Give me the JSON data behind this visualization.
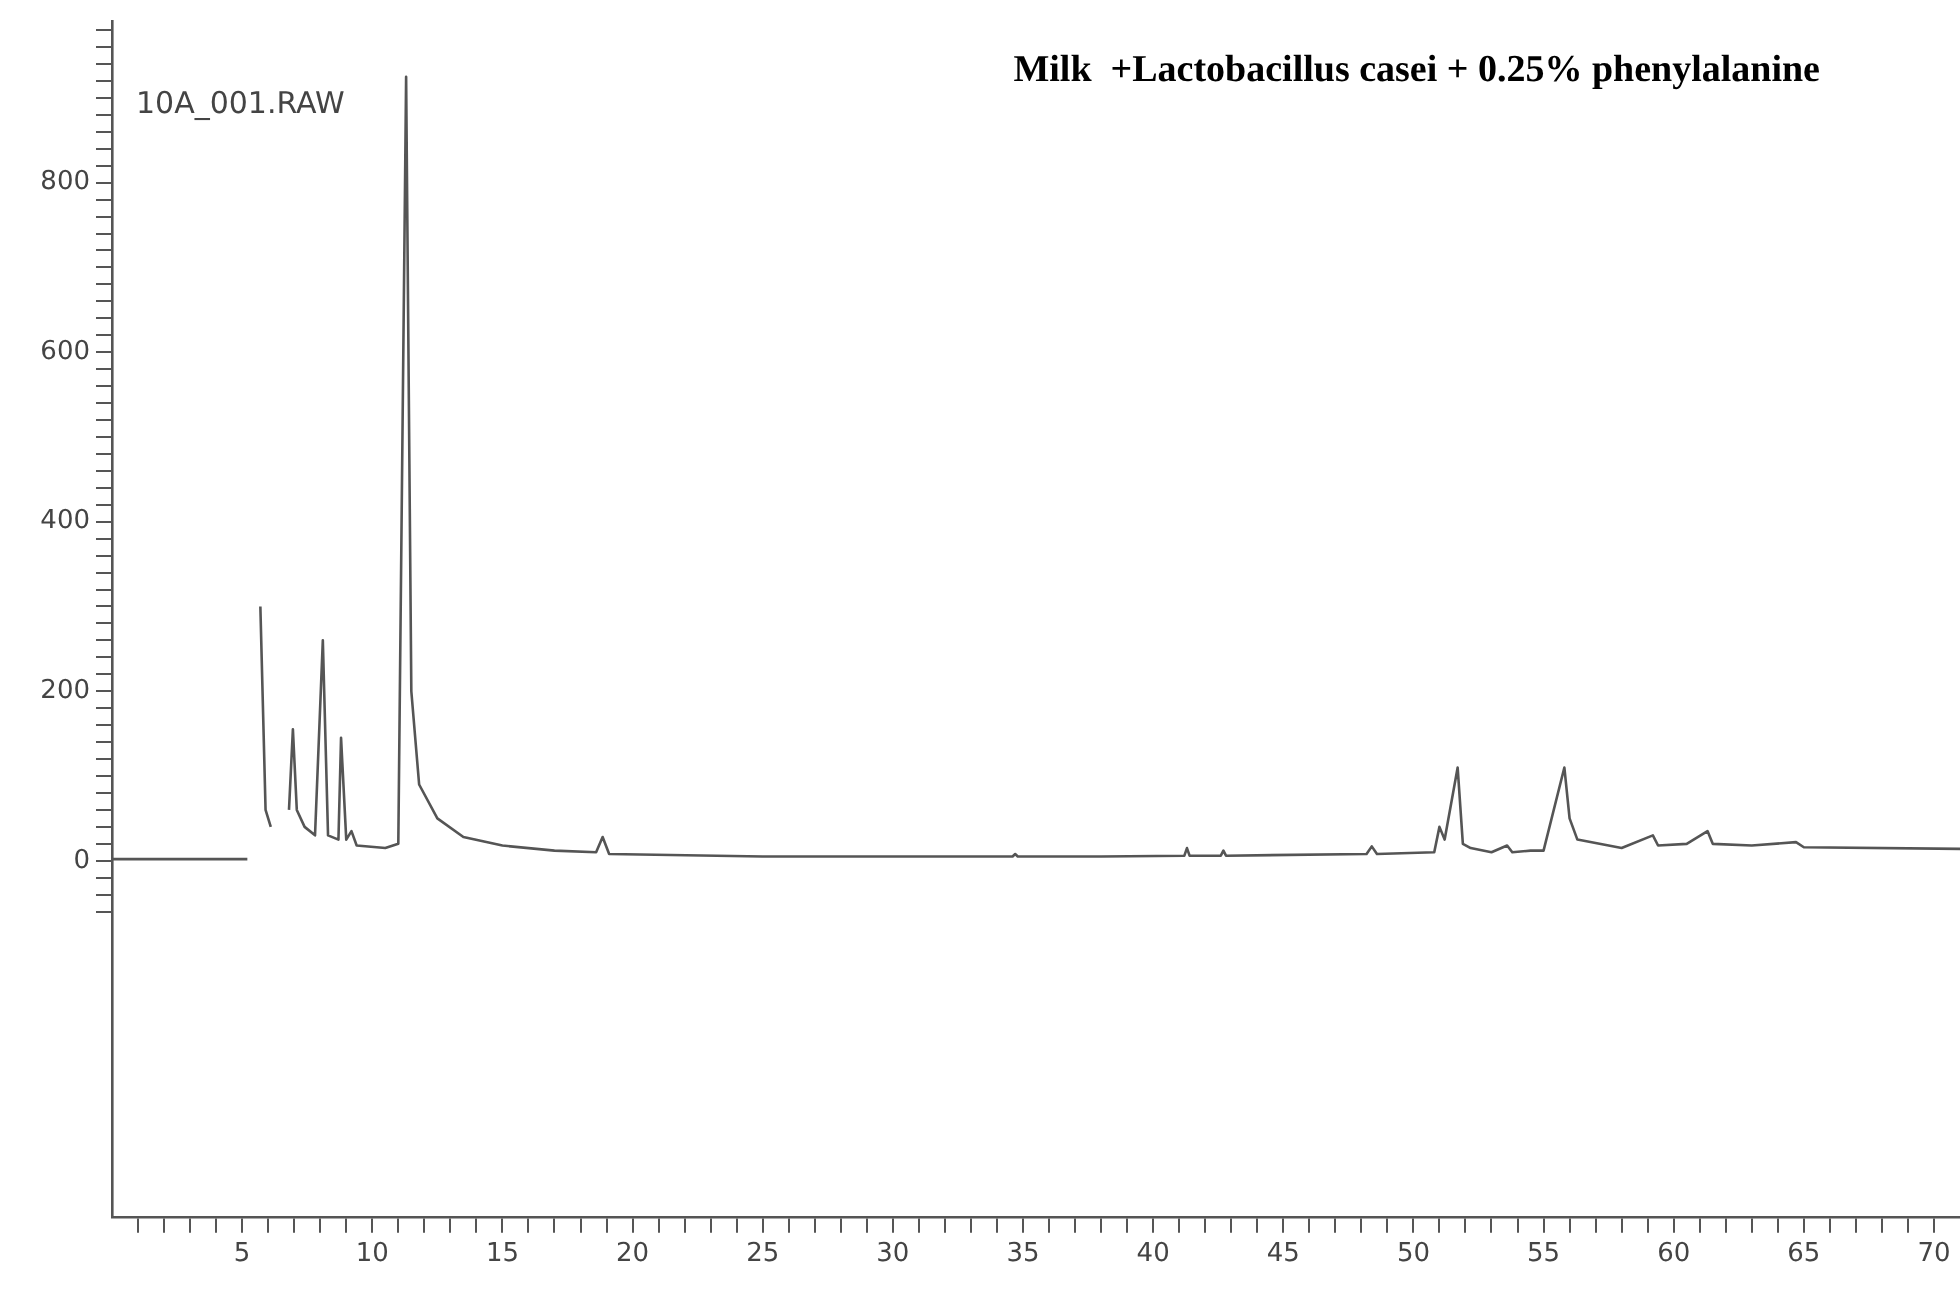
{
  "chart_data": {
    "type": "line",
    "title": "Milk  +Lactobacillus casei + 0.25% phenylalanine",
    "annotations": [
      "10A_001.RAW"
    ],
    "xlim": [
      0,
      71
    ],
    "ylim": [
      -420,
      990
    ],
    "xticks": [
      {
        "value": 1,
        "label": null
      },
      {
        "value": 2,
        "label": null
      },
      {
        "value": 3,
        "label": null
      },
      {
        "value": 4,
        "label": null
      },
      5,
      {
        "value": 6,
        "label": null
      },
      {
        "value": 7,
        "label": null
      },
      {
        "value": 8,
        "label": null
      },
      {
        "value": 9,
        "label": null
      },
      10,
      {
        "value": 11,
        "label": null
      },
      {
        "value": 12,
        "label": null
      },
      {
        "value": 13,
        "label": null
      },
      {
        "value": 14,
        "label": null
      },
      15,
      {
        "value": 16,
        "label": null
      },
      {
        "value": 17,
        "label": null
      },
      {
        "value": 18,
        "label": null
      },
      {
        "value": 19,
        "label": null
      },
      20,
      {
        "value": 21,
        "label": null
      },
      {
        "value": 22,
        "label": null
      },
      {
        "value": 23,
        "label": null
      },
      {
        "value": 24,
        "label": null
      },
      25,
      {
        "value": 26,
        "label": null
      },
      {
        "value": 27,
        "label": null
      },
      {
        "value": 28,
        "label": null
      },
      {
        "value": 29,
        "label": null
      },
      30,
      {
        "value": 31,
        "label": null
      },
      {
        "value": 32,
        "label": null
      },
      {
        "value": 33,
        "label": null
      },
      {
        "value": 34,
        "label": null
      },
      35,
      {
        "value": 36,
        "label": null
      },
      {
        "value": 37,
        "label": null
      },
      {
        "value": 38,
        "label": null
      },
      {
        "value": 39,
        "label": null
      },
      40,
      {
        "value": 41,
        "label": null
      },
      {
        "value": 42,
        "label": null
      },
      {
        "value": 43,
        "label": null
      },
      {
        "value": 44,
        "label": null
      },
      45,
      {
        "value": 46,
        "label": null
      },
      {
        "value": 47,
        "label": null
      },
      {
        "value": 48,
        "label": null
      },
      {
        "value": 49,
        "label": null
      },
      50,
      {
        "value": 51,
        "label": null
      },
      {
        "value": 52,
        "label": null
      },
      {
        "value": 53,
        "label": null
      },
      {
        "value": 54,
        "label": null
      },
      55,
      {
        "value": 56,
        "label": null
      },
      {
        "value": 57,
        "label": null
      },
      {
        "value": 58,
        "label": null
      },
      {
        "value": 59,
        "label": null
      },
      60,
      {
        "value": 61,
        "label": null
      },
      {
        "value": 62,
        "label": null
      },
      {
        "value": 63,
        "label": null
      },
      {
        "value": 64,
        "label": null
      },
      65,
      {
        "value": 66,
        "label": null
      },
      {
        "value": 67,
        "label": null
      },
      {
        "value": 68,
        "label": null
      },
      {
        "value": 69,
        "label": null
      },
      70
    ],
    "yticks": [
      {
        "value": -60,
        "label": null
      },
      {
        "value": -40,
        "label": null
      },
      {
        "value": -20,
        "label": null
      },
      0,
      {
        "value": 20,
        "label": null
      },
      {
        "value": 40,
        "label": null
      },
      {
        "value": 60,
        "label": null
      },
      {
        "value": 80,
        "label": null
      },
      {
        "value": 100,
        "label": null
      },
      {
        "value": 120,
        "label": null
      },
      {
        "value": 140,
        "label": null
      },
      {
        "value": 160,
        "label": null
      },
      {
        "value": 180,
        "label": null
      },
      200,
      {
        "value": 220,
        "label": null
      },
      {
        "value": 240,
        "label": null
      },
      {
        "value": 260,
        "label": null
      },
      {
        "value": 280,
        "label": null
      },
      {
        "value": 300,
        "label": null
      },
      {
        "value": 320,
        "label": null
      },
      {
        "value": 340,
        "label": null
      },
      {
        "value": 360,
        "label": null
      },
      {
        "value": 380,
        "label": null
      },
      400,
      {
        "value": 420,
        "label": null
      },
      {
        "value": 440,
        "label": null
      },
      {
        "value": 460,
        "label": null
      },
      {
        "value": 480,
        "label": null
      },
      {
        "value": 500,
        "label": null
      },
      {
        "value": 520,
        "label": null
      },
      {
        "value": 540,
        "label": null
      },
      {
        "value": 560,
        "label": null
      },
      {
        "value": 580,
        "label": null
      },
      600,
      {
        "value": 620,
        "label": null
      },
      {
        "value": 640,
        "label": null
      },
      {
        "value": 660,
        "label": null
      },
      {
        "value": 680,
        "label": null
      },
      {
        "value": 700,
        "label": null
      },
      {
        "value": 720,
        "label": null
      },
      {
        "value": 740,
        "label": null
      },
      {
        "value": 760,
        "label": null
      },
      {
        "value": 780,
        "label": null
      },
      800,
      {
        "value": 820,
        "label": null
      },
      {
        "value": 840,
        "label": null
      },
      {
        "value": 860,
        "label": null
      },
      {
        "value": 880,
        "label": null
      },
      {
        "value": 900,
        "label": null
      },
      {
        "value": 920,
        "label": null
      },
      {
        "value": 940,
        "label": null
      },
      {
        "value": 960,
        "label": null
      },
      {
        "value": 980,
        "label": null
      }
    ],
    "marker": "none",
    "series": [
      {
        "color": "#555555",
        "x": [
          0,
          5.2,
          5.3,
          5.4,
          5.5,
          5.7,
          5.9,
          6.1,
          6.4,
          6.6,
          6.8,
          6.95,
          7.1,
          7.4,
          7.8,
          8.1,
          8.3,
          8.7,
          8.8,
          9.0,
          9.2,
          9.4,
          10.5,
          11.0,
          11.3,
          11.5,
          11.8,
          12.5,
          13.5,
          15,
          17,
          18.6,
          18.85,
          19.1,
          25,
          30,
          34.6,
          34.7,
          34.8,
          38,
          41.2,
          41.3,
          41.4,
          42.6,
          42.7,
          42.8,
          48.2,
          48.4,
          48.6,
          50.8,
          51.0,
          51.2,
          51.7,
          51.9,
          52.2,
          53,
          53.6,
          53.8,
          54.5,
          55.0,
          55.8,
          56.0,
          56.3,
          58,
          59.2,
          59.4,
          60.5,
          61.3,
          61.5,
          63,
          64.7,
          65,
          71
        ],
        "values": [
          2,
          2,
          null,
          null,
          null,
          300,
          60,
          40,
          null,
          null,
          60,
          155,
          60,
          40,
          30,
          260,
          30,
          25,
          145,
          25,
          35,
          18,
          15,
          20,
          925,
          200,
          90,
          50,
          28,
          18,
          12,
          10,
          28,
          8,
          5,
          5,
          5,
          8,
          5,
          5,
          6,
          15,
          6,
          6,
          12,
          6,
          8,
          17,
          8,
          10,
          40,
          25,
          110,
          20,
          15,
          10,
          18,
          10,
          12,
          12,
          110,
          50,
          25,
          15,
          30,
          18,
          20,
          35,
          20,
          18,
          22,
          16,
          14
        ]
      }
    ]
  }
}
